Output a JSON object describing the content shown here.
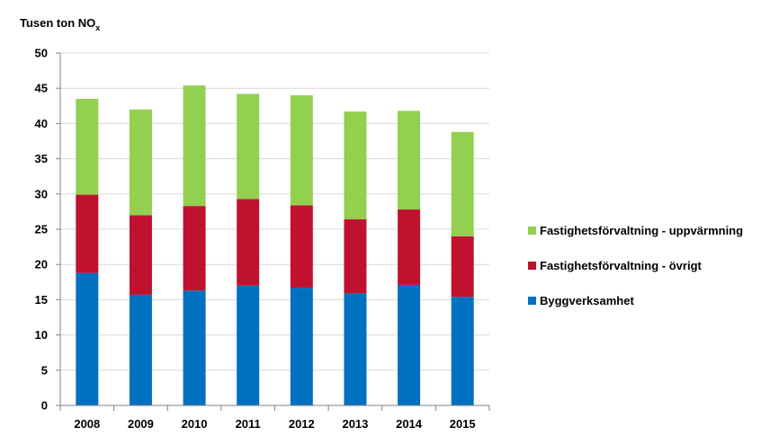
{
  "chart_data": {
    "type": "bar",
    "stacked": true,
    "ylabel": "Tusen ton NO",
    "ylabel_subscript": "x",
    "categories": [
      "2008",
      "2009",
      "2010",
      "2011",
      "2012",
      "2013",
      "2014",
      "2015"
    ],
    "ylim": [
      0,
      50
    ],
    "yticks": [
      0,
      5,
      10,
      15,
      20,
      25,
      30,
      35,
      40,
      45,
      50
    ],
    "grid": true,
    "legend_position": "right",
    "series": [
      {
        "name": "Byggverksamhet",
        "color": "#0070c0",
        "values": [
          18.8,
          15.7,
          16.3,
          17.0,
          16.7,
          15.9,
          17.1,
          15.4
        ]
      },
      {
        "name": "Fastighetsförvaltning - övrigt",
        "color": "#c0122f",
        "values": [
          11.1,
          11.3,
          12.0,
          12.3,
          11.7,
          10.5,
          10.7,
          8.6
        ]
      },
      {
        "name": "Fastighetsförvaltning - uppvärmning",
        "color": "#92d050",
        "values": [
          13.6,
          15.0,
          17.1,
          14.9,
          15.6,
          15.3,
          14.0,
          14.8
        ]
      }
    ],
    "legend_order": [
      2,
      1,
      0
    ]
  }
}
